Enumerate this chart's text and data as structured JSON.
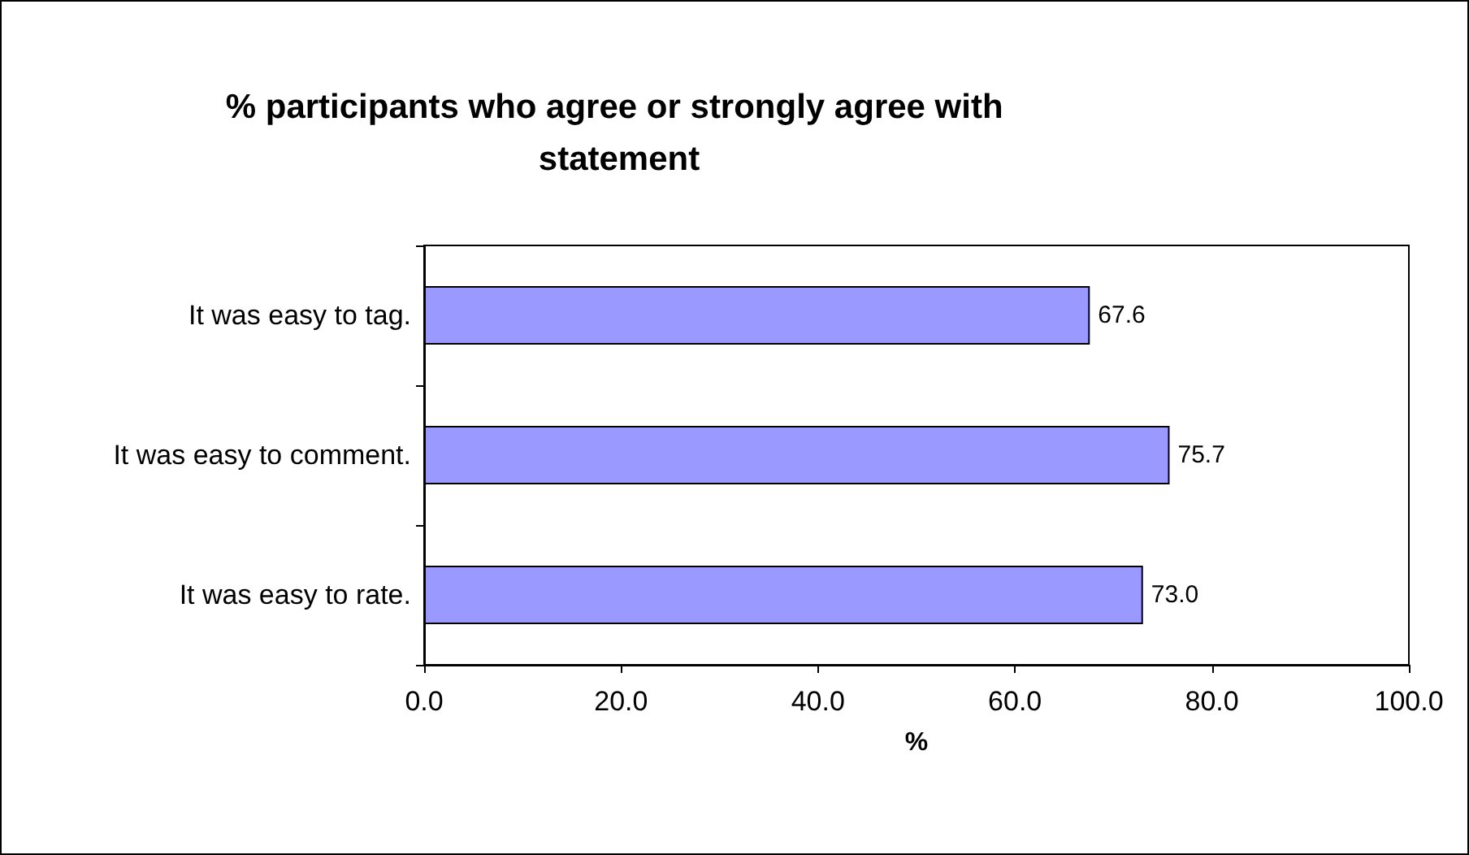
{
  "chart_data": {
    "type": "bar",
    "orientation": "horizontal",
    "title": "% participants who agree or strongly agree with statement",
    "xlabel": "%",
    "categories": [
      "It was easy to tag.",
      "It was easy to comment.",
      "It was easy to rate."
    ],
    "values": [
      67.6,
      75.7,
      73.0
    ],
    "value_labels": [
      "67.6",
      "75.7",
      "73.0"
    ],
    "color": "#9999ff",
    "xlim": [
      0,
      100
    ],
    "xticks": [
      {
        "value": 0,
        "label": "0.0"
      },
      {
        "value": 20,
        "label": "20.0"
      },
      {
        "value": 40,
        "label": "40.0"
      },
      {
        "value": 60,
        "label": "60.0"
      },
      {
        "value": 80,
        "label": "80.0"
      },
      {
        "value": 100,
        "label": "100.0"
      }
    ],
    "grid": false
  }
}
